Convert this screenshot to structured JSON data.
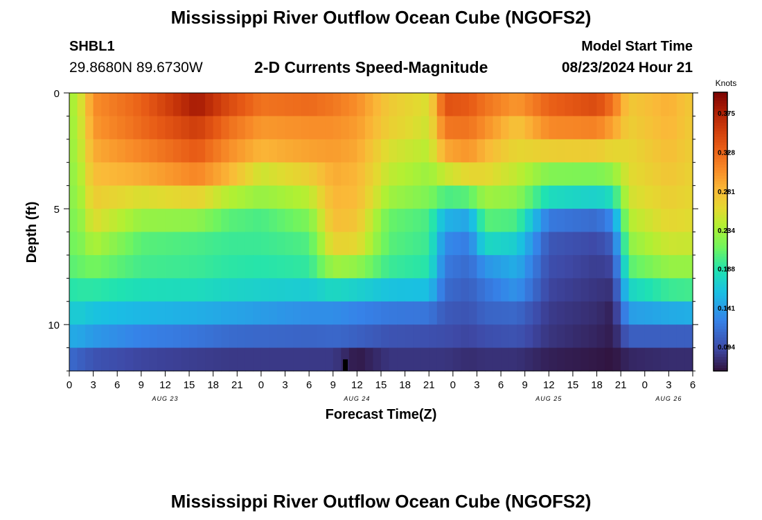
{
  "header": {
    "title": "Mississippi River Outflow Ocean Cube (NGOFS2)",
    "station": "SHBL1",
    "coords": "29.8680N  89.6730W",
    "subtitle": "2-D Currents Speed-Magnitude",
    "model_start_label": "Model Start Time",
    "model_start_value": "08/23/2024 Hour 21"
  },
  "footer": {
    "title": "Mississippi River Outflow Ocean Cube (NGOFS2)"
  },
  "chart_data": {
    "type": "heatmap",
    "title": "2-D Currents Speed-Magnitude",
    "xlabel": "Forecast Time(Z)",
    "ylabel": "Depth (ft)",
    "x_ticks": [
      "0",
      "3",
      "6",
      "9",
      "12",
      "15",
      "18",
      "21",
      "0",
      "3",
      "6",
      "9",
      "12",
      "15",
      "18",
      "21",
      "0",
      "3",
      "6",
      "9",
      "12",
      "15",
      "18",
      "21",
      "0",
      "3",
      "6"
    ],
    "x_tick_hours": [
      0,
      3,
      6,
      9,
      12,
      15,
      18,
      21,
      24,
      27,
      30,
      33,
      36,
      39,
      42,
      45,
      48,
      51,
      54,
      57,
      60,
      63,
      66,
      69,
      72,
      75,
      78
    ],
    "date_labels": [
      {
        "label": "AUG 23",
        "hour": 12
      },
      {
        "label": "AUG 24",
        "hour": 36
      },
      {
        "label": "AUG 25",
        "hour": 60
      },
      {
        "label": "AUG 26",
        "hour": 75
      }
    ],
    "xlim": [
      0,
      78
    ],
    "y_ticks": [
      "0",
      "5",
      "10"
    ],
    "y_tick_values": [
      0,
      5,
      10
    ],
    "ylim": [
      0,
      12
    ],
    "depth_rows": [
      0.5,
      1.5,
      2.5,
      3.5,
      4.5,
      5.5,
      6.5,
      7.5,
      8.5,
      9.5,
      10.5,
      11.5
    ],
    "keyframes": [
      {
        "hour": 0,
        "speeds": [
          0.228,
          0.226,
          0.224,
          0.222,
          0.22,
          0.216,
          0.212,
          0.205,
          0.188,
          0.168,
          0.148,
          0.112
        ]
      },
      {
        "hour": 1.5,
        "speeds": [
          0.255,
          0.252,
          0.248,
          0.242,
          0.236,
          0.228,
          0.22,
          0.21,
          0.19,
          0.168,
          0.145,
          0.105
        ]
      },
      {
        "hour": 3,
        "speeds": [
          0.305,
          0.3,
          0.29,
          0.28,
          0.27,
          0.258,
          0.238,
          0.215,
          0.19,
          0.162,
          0.138,
          0.098
        ]
      },
      {
        "hour": 9,
        "speeds": [
          0.33,
          0.325,
          0.31,
          0.29,
          0.255,
          0.228,
          0.205,
          0.198,
          0.182,
          0.155,
          0.125,
          0.09
        ]
      },
      {
        "hour": 16,
        "speeds": [
          0.38,
          0.355,
          0.335,
          0.31,
          0.265,
          0.225,
          0.2,
          0.195,
          0.18,
          0.15,
          0.118,
          0.086
        ]
      },
      {
        "hour": 20,
        "speeds": [
          0.345,
          0.322,
          0.305,
          0.285,
          0.24,
          0.205,
          0.195,
          0.19,
          0.175,
          0.145,
          0.112,
          0.084
        ]
      },
      {
        "hour": 24,
        "speeds": [
          0.32,
          0.3,
          0.285,
          0.25,
          0.228,
          0.2,
          0.195,
          0.188,
          0.172,
          0.14,
          0.11,
          0.084
        ]
      },
      {
        "hour": 30,
        "speeds": [
          0.325,
          0.305,
          0.295,
          0.268,
          0.242,
          0.218,
          0.202,
          0.192,
          0.168,
          0.132,
          0.108,
          0.084
        ]
      },
      {
        "hour": 33,
        "speeds": [
          0.318,
          0.305,
          0.298,
          0.29,
          0.285,
          0.28,
          0.265,
          0.232,
          0.178,
          0.132,
          0.11,
          0.084
        ]
      },
      {
        "hour": 36,
        "speeds": [
          0.305,
          0.298,
          0.292,
          0.285,
          0.282,
          0.275,
          0.262,
          0.226,
          0.172,
          0.126,
          0.106,
          0.068
        ]
      },
      {
        "hour": 40,
        "speeds": [
          0.272,
          0.268,
          0.255,
          0.245,
          0.232,
          0.21,
          0.205,
          0.195,
          0.162,
          0.12,
          0.098,
          0.082
        ]
      },
      {
        "hour": 45,
        "speeds": [
          0.255,
          0.25,
          0.242,
          0.23,
          0.218,
          0.2,
          0.195,
          0.188,
          0.16,
          0.118,
          0.096,
          0.082
        ]
      },
      {
        "hour": 47,
        "speeds": [
          0.34,
          0.318,
          0.292,
          0.248,
          0.2,
          0.152,
          0.13,
          0.12,
          0.112,
          0.102,
          0.094,
          0.082
        ]
      },
      {
        "hour": 50,
        "speeds": [
          0.335,
          0.32,
          0.302,
          0.262,
          0.205,
          0.145,
          0.122,
          0.112,
          0.105,
          0.098,
          0.09,
          0.078
        ]
      },
      {
        "hour": 52,
        "speeds": [
          0.32,
          0.305,
          0.285,
          0.262,
          0.232,
          0.205,
          0.178,
          0.135,
          0.118,
          0.108,
          0.095,
          0.08
        ]
      },
      {
        "hour": 56,
        "speeds": [
          0.3,
          0.275,
          0.262,
          0.245,
          0.225,
          0.2,
          0.17,
          0.15,
          0.135,
          0.11,
          0.098,
          0.08
        ]
      },
      {
        "hour": 60,
        "speeds": [
          0.33,
          0.308,
          0.268,
          0.22,
          0.18,
          0.12,
          0.1,
          0.095,
          0.09,
          0.085,
          0.082,
          0.072
        ]
      },
      {
        "hour": 66,
        "speeds": [
          0.345,
          0.312,
          0.27,
          0.218,
          0.172,
          0.112,
          0.092,
          0.086,
          0.082,
          0.078,
          0.074,
          0.068
        ]
      },
      {
        "hour": 68,
        "speeds": [
          0.32,
          0.295,
          0.262,
          0.225,
          0.182,
          0.13,
          0.105,
          0.09,
          0.08,
          0.072,
          0.07,
          0.066
        ]
      },
      {
        "hour": 70,
        "speeds": [
          0.272,
          0.268,
          0.262,
          0.258,
          0.252,
          0.24,
          0.225,
          0.205,
          0.175,
          0.14,
          0.105,
          0.075
        ]
      },
      {
        "hour": 75,
        "speeds": [
          0.288,
          0.285,
          0.28,
          0.275,
          0.268,
          0.262,
          0.25,
          0.228,
          0.195,
          0.148,
          0.105,
          0.078
        ]
      },
      {
        "hour": 78,
        "speeds": [
          0.272,
          0.27,
          0.268,
          0.265,
          0.262,
          0.258,
          0.248,
          0.228,
          0.198,
          0.15,
          0.105,
          0.078
        ]
      }
    ],
    "missing_marker_hour": 34.5,
    "colorbar": {
      "units": "Knots",
      "min": 0.065,
      "max": 0.4,
      "tick_values": [
        0.094,
        0.141,
        0.188,
        0.234,
        0.281,
        0.328,
        0.375
      ],
      "tick_labels": [
        "0.094",
        "0.141",
        "0.188",
        "0.234",
        "0.281",
        "0.328",
        "0.375"
      ]
    }
  }
}
